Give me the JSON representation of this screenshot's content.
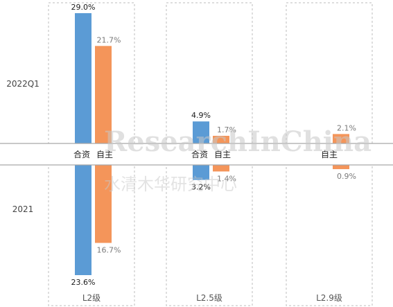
{
  "chart_data": {
    "type": "bar",
    "orientation": "diverging-vertical",
    "rows": [
      "2022Q1",
      "2021"
    ],
    "categories": [
      "L2级",
      "L2.5级",
      "L2.9级"
    ],
    "series": [
      {
        "name": "合资",
        "color": "#5b9bd5",
        "values_2022Q1": [
          29.0,
          4.9,
          null
        ],
        "values_2021": [
          23.6,
          3.2,
          null
        ],
        "labels_2022Q1": [
          "29.0%",
          "4.9%",
          null
        ],
        "labels_2021": [
          "23.6%",
          "3.2%",
          null
        ]
      },
      {
        "name": "自主",
        "color": "#f4955a",
        "values_2022Q1": [
          21.7,
          1.7,
          2.1
        ],
        "values_2021": [
          16.7,
          1.4,
          0.9
        ],
        "labels_2022Q1": [
          "21.7%",
          "1.7%",
          "2.1%"
        ],
        "labels_2021": [
          "16.7%",
          "1.4%",
          "0.9%"
        ]
      }
    ],
    "band_labels": [
      {
        "category": 0,
        "labels": [
          "合资",
          "自主"
        ]
      },
      {
        "category": 1,
        "labels": [
          "合资",
          "自主"
        ]
      },
      {
        "category": 2,
        "labels": [
          "自主"
        ]
      }
    ],
    "unit": "%",
    "watermark": {
      "text_en": "ResearchInChina",
      "text_cn": "水清木华研究中心"
    }
  }
}
